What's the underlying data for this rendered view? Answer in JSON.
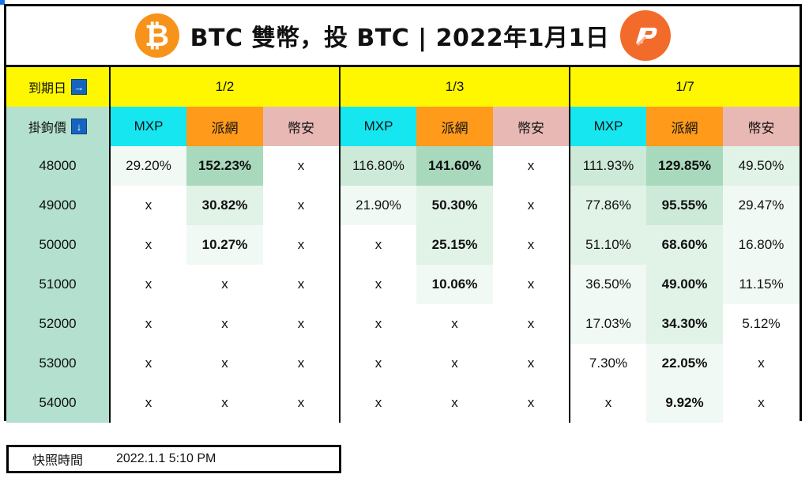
{
  "title": "BTC 雙幣，投 BTC | 2022年1月1日",
  "logos": {
    "left": "bitcoin-logo",
    "right": "pi-logo",
    "btc_symbol": "₿"
  },
  "header": {
    "expiry_label": "到期日",
    "expiry_arrow": "→",
    "strike_label": "掛鉤價",
    "strike_arrow": "↓"
  },
  "expiries": [
    {
      "date": "1/2",
      "columns": [
        "MXP",
        "派網",
        "幣安"
      ]
    },
    {
      "date": "1/3",
      "columns": [
        "MXP",
        "派網",
        "幣安"
      ]
    },
    {
      "date": "1/7",
      "columns": [
        "MXP",
        "派網",
        "幣安"
      ]
    }
  ],
  "rows": [
    {
      "strike": "48000",
      "cells": [
        "29.20%",
        "152.23%",
        "x",
        "116.80%",
        "141.60%",
        "x",
        "111.93%",
        "129.85%",
        "49.50%"
      ]
    },
    {
      "strike": "49000",
      "cells": [
        "x",
        "30.82%",
        "x",
        "21.90%",
        "50.30%",
        "x",
        "77.86%",
        "95.55%",
        "29.47%"
      ]
    },
    {
      "strike": "50000",
      "cells": [
        "x",
        "10.27%",
        "x",
        "x",
        "25.15%",
        "x",
        "51.10%",
        "68.60%",
        "16.80%"
      ]
    },
    {
      "strike": "51000",
      "cells": [
        "x",
        "x",
        "x",
        "x",
        "10.06%",
        "x",
        "36.50%",
        "49.00%",
        "11.15%"
      ]
    },
    {
      "strike": "52000",
      "cells": [
        "x",
        "x",
        "x",
        "x",
        "x",
        "x",
        "17.03%",
        "34.30%",
        "5.12%"
      ]
    },
    {
      "strike": "53000",
      "cells": [
        "x",
        "x",
        "x",
        "x",
        "x",
        "x",
        "7.30%",
        "22.05%",
        "x"
      ]
    },
    {
      "strike": "54000",
      "cells": [
        "x",
        "x",
        "x",
        "x",
        "x",
        "x",
        "x",
        "9.92%",
        "x"
      ]
    }
  ],
  "shading": [
    [
      1,
      4,
      0,
      3,
      4,
      0,
      3,
      4,
      2
    ],
    [
      0,
      2,
      0,
      1,
      2,
      0,
      2,
      3,
      1
    ],
    [
      0,
      1,
      0,
      0,
      2,
      0,
      2,
      2,
      1
    ],
    [
      0,
      0,
      0,
      0,
      1,
      0,
      1,
      2,
      1
    ],
    [
      0,
      0,
      0,
      0,
      0,
      0,
      1,
      2,
      0
    ],
    [
      0,
      0,
      0,
      0,
      0,
      0,
      0,
      1,
      0
    ],
    [
      0,
      0,
      0,
      0,
      0,
      0,
      0,
      1,
      0
    ]
  ],
  "colors": {
    "header_yellow": "#fff700",
    "strike_col": "#b3e0cf",
    "mxp": "#16e6f0",
    "pi": "#ff9a1a",
    "binance": "#e8b9b4",
    "pi_text": "#e04040"
  },
  "footer": {
    "label": "快照時間",
    "value": "2022.1.1 5:10 PM"
  }
}
